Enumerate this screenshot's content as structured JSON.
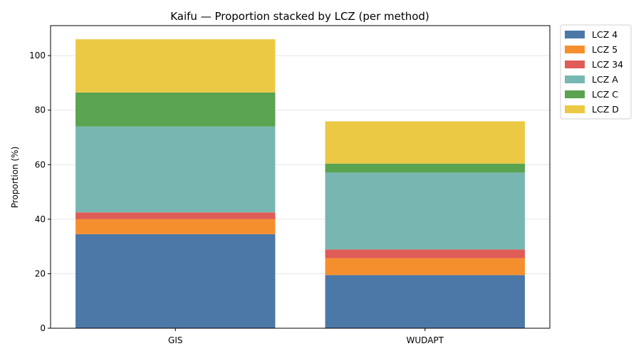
{
  "chart_data": {
    "type": "bar",
    "stacked": true,
    "title": "Kaifu — Proportion stacked by LCZ (per method)",
    "xlabel": "",
    "ylabel": "Proportion (%)",
    "categories": [
      "GIS",
      "WUDAPT"
    ],
    "ylim": [
      0,
      111
    ],
    "yticks": [
      0,
      20,
      40,
      60,
      80,
      100
    ],
    "grid": "horizontal",
    "legend_position": "outside-top-right",
    "series": [
      {
        "name": "LCZ 4",
        "color": "#4c78a8",
        "values": [
          34.5,
          19.5
        ]
      },
      {
        "name": "LCZ 5",
        "color": "#f58f2e",
        "values": [
          5.5,
          6.2
        ]
      },
      {
        "name": "LCZ 34",
        "color": "#e05c57",
        "values": [
          2.5,
          3.2
        ]
      },
      {
        "name": "LCZ A",
        "color": "#78b7b1",
        "values": [
          31.5,
          28.2
        ]
      },
      {
        "name": "LCZ C",
        "color": "#5aa350",
        "values": [
          12.5,
          3.3
        ]
      },
      {
        "name": "LCZ D",
        "color": "#ebc945",
        "values": [
          19.5,
          15.5
        ]
      }
    ]
  }
}
